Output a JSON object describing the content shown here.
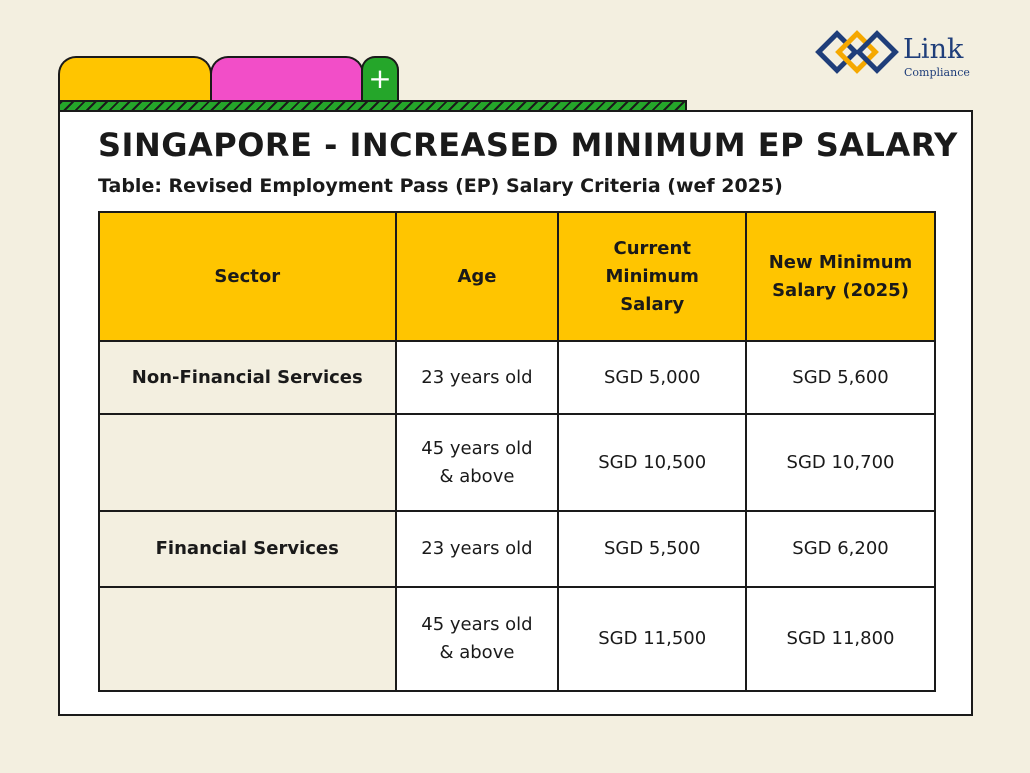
{
  "brand": {
    "name": "Link",
    "tagline": "Compliance",
    "colors": {
      "navy": "#1f3e7a",
      "gold": "#f5a800"
    }
  },
  "tabs": {
    "plus_symbol": "+",
    "colors": [
      "#ffc500",
      "#f24ec8",
      "#25a62a"
    ]
  },
  "title": "SINGAPORE - INCREASED MINIMUM EP SALARY",
  "subtitle": "Table: Revised Employment Pass (EP) Salary Criteria (wef 2025)",
  "table": {
    "headers": [
      "Sector",
      "Age",
      "Current Minimum Salary",
      "New Minimum Salary (2025)"
    ],
    "rows": [
      {
        "sector": "Non-Financial Services",
        "age": "23 years old",
        "current": "SGD 5,000",
        "new": "SGD 5,600"
      },
      {
        "sector": "",
        "age": "45 years old & above",
        "current": "SGD 10,500",
        "new": "SGD 10,700"
      },
      {
        "sector": "Financial Services",
        "age": "23 years old",
        "current": "SGD 5,500",
        "new": "SGD 6,200"
      },
      {
        "sector": "",
        "age": "45 years old & above",
        "current": "SGD 11,500",
        "new": "SGD 11,800"
      }
    ]
  },
  "colors": {
    "header_bg": "#ffc500",
    "page_bg": "#f3efe0",
    "card_bg": "#ffffff",
    "border": "#1a1a1a"
  }
}
